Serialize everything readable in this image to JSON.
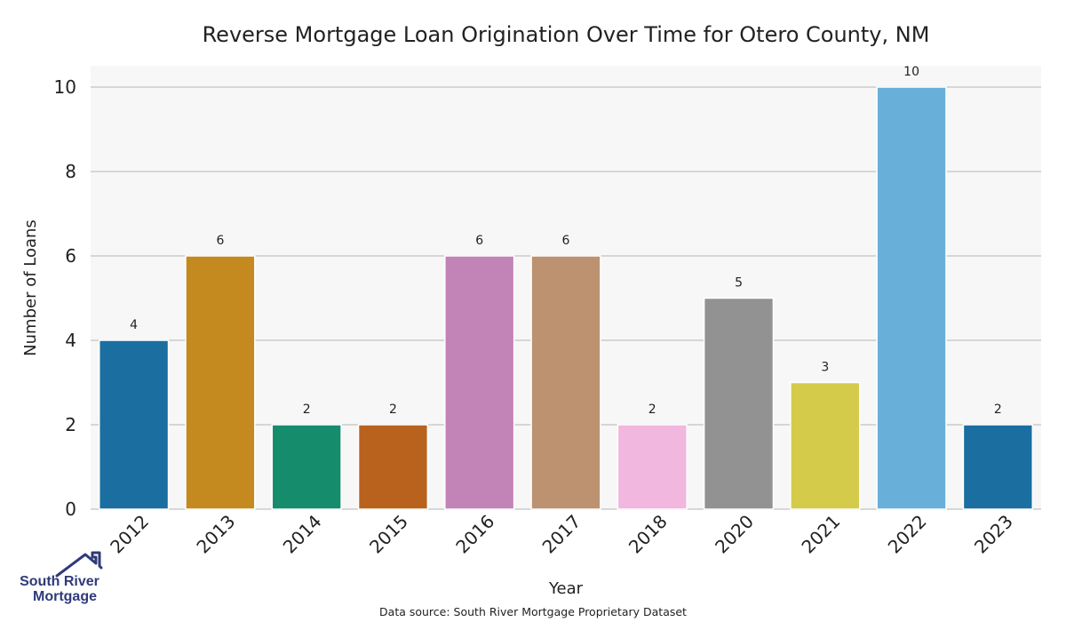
{
  "chart_data": {
    "type": "bar",
    "title": "Reverse Mortgage Loan Origination Over Time for Otero County, NM",
    "xlabel": "Year",
    "ylabel": "Number of Loans",
    "categories": [
      "2012",
      "2013",
      "2014",
      "2015",
      "2016",
      "2017",
      "2018",
      "2020",
      "2021",
      "2022",
      "2023"
    ],
    "values": [
      4,
      6,
      2,
      2,
      6,
      6,
      2,
      5,
      3,
      10,
      2
    ],
    "ylim": [
      0,
      10.5
    ],
    "yticks": [
      0,
      2,
      4,
      6,
      8,
      10
    ],
    "grid": true,
    "bar_colors": [
      "#1a6fa0",
      "#c4891f",
      "#158c6c",
      "#b9621e",
      "#c283b6",
      "#bc9270",
      "#f2b7de",
      "#929292",
      "#d5cb4a",
      "#68b0da",
      "#1a6fa0"
    ],
    "plot_background": "#f7f7f7",
    "gridline_color": "#cccccc"
  },
  "source_note": "Data source: South River Mortgage Proprietary Dataset",
  "logo": {
    "line1": "South River",
    "line2": "Mortgage",
    "icon": "house-roof-icon",
    "color": "#2e3a7a"
  }
}
